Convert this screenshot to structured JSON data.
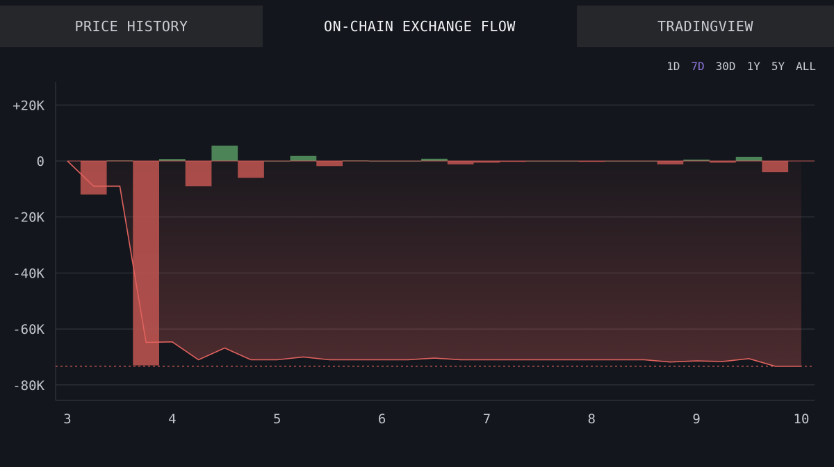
{
  "tabs": [
    {
      "label": "PRICE HISTORY",
      "active": false
    },
    {
      "label": "ON-CHAIN EXCHANGE FLOW",
      "active": true
    },
    {
      "label": "TRADINGVIEW",
      "active": false
    }
  ],
  "ranges": {
    "options": [
      "1D",
      "7D",
      "30D",
      "1Y",
      "5Y",
      "ALL"
    ],
    "selected": "7D"
  },
  "colors": {
    "inflow_bar": "#4f8a5c",
    "outflow_bar": "#b8524f",
    "cumulative_line": "#e0625e",
    "grid": "#3a3d44",
    "accent": "#8f78e0"
  },
  "chart_data": {
    "type": "bar",
    "xlim": [
      3,
      10
    ],
    "ylim": [
      -85000,
      27000
    ],
    "yticks": [
      20000,
      0,
      -20000,
      -40000,
      -60000,
      -80000
    ],
    "ytick_labels": [
      "+20K",
      "0",
      "-20K",
      "-40K",
      "-60K",
      "-80K"
    ],
    "xticks": [
      3,
      4,
      5,
      6,
      7,
      8,
      9,
      10
    ],
    "xtick_labels": [
      "3",
      "4",
      "5",
      "6",
      "7",
      "8",
      "9",
      "10"
    ],
    "bar_width": 0.25,
    "series": [
      {
        "kind": "bar",
        "x": [
          3.25,
          3.5,
          3.75,
          4.0,
          4.25,
          4.5,
          4.75,
          5.0,
          5.25,
          5.5,
          5.75,
          6.0,
          6.25,
          6.5,
          6.75,
          7.0,
          7.25,
          7.5,
          7.75,
          8.0,
          8.25,
          8.5,
          8.75,
          9.0,
          9.25,
          9.5,
          9.75
        ],
        "values": [
          -12000,
          200,
          -73000,
          700,
          -9000,
          5500,
          -6000,
          100,
          1800,
          -1800,
          200,
          100,
          100,
          800,
          -1200,
          -600,
          -300,
          100,
          100,
          -200,
          100,
          100,
          -1200,
          500,
          -600,
          1500,
          -4000
        ]
      },
      {
        "kind": "line",
        "x": [
          3.0,
          3.25,
          3.5,
          3.75,
          4.0,
          4.25,
          4.5,
          4.75,
          5.0,
          5.25,
          5.5,
          5.75,
          6.0,
          6.25,
          6.5,
          6.75,
          7.0,
          7.25,
          7.5,
          7.75,
          8.0,
          8.25,
          8.5,
          8.75,
          9.0,
          9.25,
          9.5,
          9.75,
          10.0
        ],
        "values": [
          0,
          -9000,
          -9000,
          -64800,
          -64600,
          -71000,
          -66800,
          -71000,
          -71000,
          -70000,
          -71000,
          -71000,
          -71000,
          -71000,
          -70400,
          -71000,
          -71000,
          -71000,
          -71000,
          -71000,
          -71000,
          -71000,
          -71000,
          -71800,
          -71400,
          -71600,
          -70600,
          -73300,
          -73300
        ]
      }
    ],
    "reference_line": -73300
  }
}
